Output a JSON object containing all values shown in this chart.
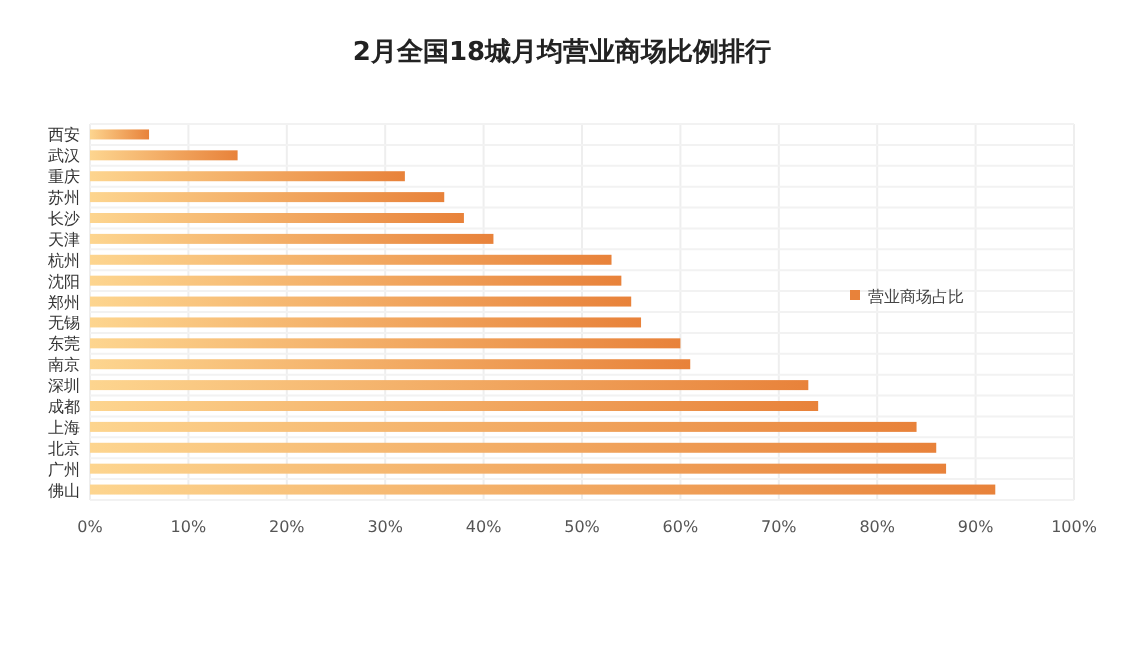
{
  "chart_data": {
    "type": "bar",
    "orientation": "horizontal",
    "title": "2月全国18城月均营业商场比例排行",
    "categories": [
      "西安",
      "武汉",
      "重庆",
      "苏州",
      "长沙",
      "天津",
      "杭州",
      "沈阳",
      "郑州",
      "无锡",
      "东莞",
      "南京",
      "深圳",
      "成都",
      "上海",
      "北京",
      "广州",
      "佛山"
    ],
    "series": [
      {
        "name": "营业商场占比",
        "color": "#e8823a",
        "values": [
          6,
          15,
          32,
          36,
          38,
          41,
          53,
          54,
          55,
          56,
          60,
          61,
          73,
          74,
          84,
          86,
          87,
          92
        ]
      }
    ],
    "xlim": [
      0,
      100
    ],
    "xticks": [
      {
        "value": 0,
        "label": "0%"
      },
      {
        "value": 10,
        "label": "10%"
      },
      {
        "value": 20,
        "label": "20%"
      },
      {
        "value": 30,
        "label": "30%"
      },
      {
        "value": 40,
        "label": "40%"
      },
      {
        "value": 50,
        "label": "50%"
      },
      {
        "value": 60,
        "label": "60%"
      },
      {
        "value": 70,
        "label": "70%"
      },
      {
        "value": 80,
        "label": "80%"
      },
      {
        "value": 90,
        "label": "90%"
      },
      {
        "value": 100,
        "label": "100%"
      }
    ],
    "grid": true,
    "legend": "right"
  }
}
